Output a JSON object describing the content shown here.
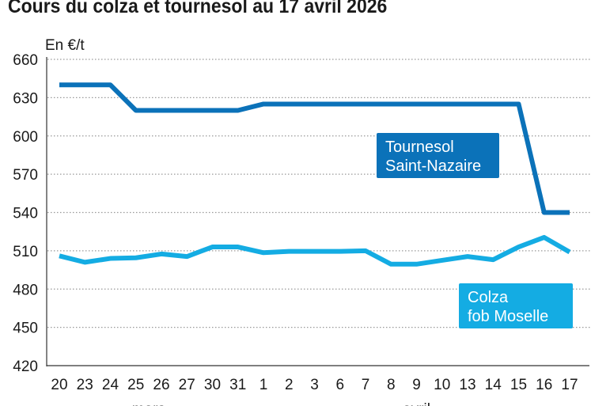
{
  "chart_data": {
    "type": "line",
    "title": "Cours du colza et tournesol au 17 avril 2026",
    "ylabel": "En €/t",
    "ylim": [
      420,
      660
    ],
    "yticks": [
      420,
      450,
      480,
      510,
      540,
      570,
      600,
      630,
      660
    ],
    "grid": true,
    "categories": [
      "20",
      "23",
      "24",
      "25",
      "26",
      "27",
      "30",
      "31",
      "1",
      "2",
      "3",
      "6",
      "7",
      "8",
      "9",
      "10",
      "13",
      "14",
      "15",
      "16",
      "17"
    ],
    "months": [
      {
        "label": "mars",
        "from": "20",
        "to": "31"
      },
      {
        "label": "avril",
        "from": "1",
        "to": "17"
      }
    ],
    "series": [
      {
        "name": "Tournesol Saint-Nazaire",
        "name_lines": [
          "Tournesol",
          "Saint-Nazaire"
        ],
        "color": "#0b72b9",
        "values": [
          640,
          640,
          640,
          620,
          620,
          620,
          620,
          620,
          625,
          625,
          625,
          625,
          625,
          625,
          625,
          625,
          625,
          625,
          625,
          540,
          540
        ]
      },
      {
        "name": "Colza fob Moselle",
        "name_lines": [
          "Colza",
          "fob Moselle"
        ],
        "color": "#14ace3",
        "values": [
          506,
          501,
          504,
          504.5,
          507.5,
          505.5,
          513,
          513,
          508.5,
          509.5,
          509.5,
          509.5,
          510,
          499.5,
          499.5,
          502.5,
          505.5,
          503,
          513,
          520.5,
          509
        ]
      }
    ]
  }
}
